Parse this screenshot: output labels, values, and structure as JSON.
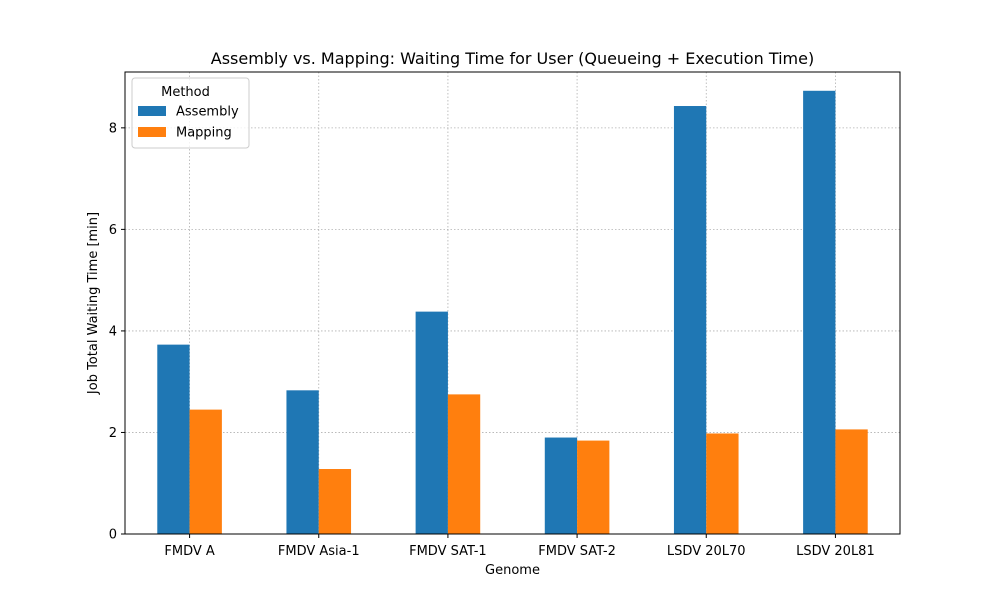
{
  "chart_data": {
    "type": "bar",
    "title": "Assembly vs. Mapping: Waiting Time for User (Queueing + Execution Time)",
    "xlabel": "Genome",
    "ylabel": "Job Total Waiting Time [min]",
    "categories": [
      "FMDV A",
      "FMDV Asia-1",
      "FMDV SAT-1",
      "FMDV SAT-2",
      "LSDV 20L70",
      "LSDV 20L81"
    ],
    "series": [
      {
        "name": "Assembly",
        "color": "#1f77b4",
        "values": [
          3.73,
          2.83,
          4.38,
          1.9,
          8.43,
          8.73
        ]
      },
      {
        "name": "Mapping",
        "color": "#ff7f0e",
        "values": [
          2.45,
          1.28,
          2.75,
          1.84,
          1.98,
          2.06
        ]
      }
    ],
    "ylim": [
      0,
      9.1
    ],
    "yticks": [
      0,
      2,
      4,
      6,
      8
    ],
    "grid": true,
    "legend": {
      "title": "Method",
      "position": "top-left"
    }
  }
}
